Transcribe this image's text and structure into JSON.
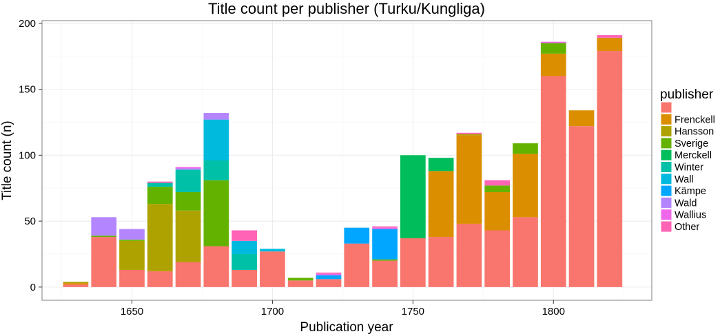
{
  "chart_data": {
    "type": "bar",
    "stacked": true,
    "title": "Title count per publisher (Turku/Kungliga)",
    "xlabel": "Publication year",
    "ylabel": "Title count (n)",
    "xlim": [
      1618,
      1835
    ],
    "ylim": [
      -10,
      202
    ],
    "x_ticks": [
      1650,
      1700,
      1750,
      1800
    ],
    "y_ticks": [
      0,
      50,
      100,
      150,
      200
    ],
    "grid": true,
    "legend": {
      "title": "publisher",
      "position": "right",
      "entries": [
        "",
        "Frenckell",
        "Hansson",
        "Sverige",
        "Merckell",
        "Winter",
        "Wall",
        "Kämpe",
        "Wald",
        "Wallius",
        "Other"
      ]
    },
    "categories": [
      1630,
      1640,
      1650,
      1660,
      1670,
      1680,
      1690,
      1700,
      1710,
      1720,
      1730,
      1740,
      1750,
      1760,
      1770,
      1780,
      1790,
      1800,
      1810,
      1820
    ],
    "series": [
      {
        "key": "unnamed",
        "color": "#F8766D",
        "values": [
          2,
          38,
          13,
          12,
          19,
          31,
          13,
          27,
          5,
          6,
          33,
          20,
          37,
          38,
          48,
          43,
          53,
          160,
          122,
          179
        ]
      },
      {
        "key": "frenckell",
        "color": "#DB8E00",
        "values": [
          1,
          0,
          0,
          0,
          0,
          0,
          0,
          0,
          0,
          0,
          0,
          0,
          0,
          50,
          67,
          29,
          48,
          17,
          12,
          10
        ]
      },
      {
        "key": "hansson",
        "color": "#AEA200",
        "values": [
          1,
          0,
          22,
          51,
          39,
          0,
          0,
          0,
          0,
          0,
          0,
          0,
          0,
          0,
          1,
          0,
          0,
          0,
          0,
          0
        ]
      },
      {
        "key": "sverige",
        "color": "#64B200",
        "values": [
          0,
          1,
          1,
          13,
          14,
          50,
          0,
          0,
          2,
          0,
          0,
          1,
          0,
          0,
          0,
          5,
          8,
          8,
          0,
          0
        ]
      },
      {
        "key": "merckell",
        "color": "#00BD5C",
        "values": [
          0,
          0,
          0,
          0,
          0,
          0,
          0,
          0,
          0,
          0,
          0,
          0,
          63,
          10,
          0,
          0,
          0,
          0,
          0,
          0
        ]
      },
      {
        "key": "winter",
        "color": "#00C1A7",
        "values": [
          0,
          0,
          0,
          3,
          17,
          15,
          12,
          0,
          0,
          0,
          0,
          0,
          0,
          0,
          0,
          0,
          0,
          0,
          0,
          0
        ]
      },
      {
        "key": "wall",
        "color": "#00BADE",
        "values": [
          0,
          0,
          0,
          0,
          0,
          31,
          10,
          2,
          0,
          0,
          0,
          0,
          0,
          0,
          0,
          0,
          0,
          0,
          0,
          0
        ]
      },
      {
        "key": "kampe",
        "color": "#00A6FF",
        "values": [
          0,
          0,
          0,
          0,
          0,
          0,
          0,
          0,
          0,
          3,
          12,
          23,
          0,
          0,
          0,
          0,
          0,
          0,
          0,
          0
        ]
      },
      {
        "key": "wald",
        "color": "#B385FF",
        "values": [
          0,
          14,
          8,
          0,
          1,
          5,
          0,
          0,
          0,
          0,
          0,
          0,
          0,
          0,
          0,
          0,
          0,
          0,
          0,
          0
        ]
      },
      {
        "key": "wallius",
        "color": "#EF67EB",
        "values": [
          0,
          0,
          0,
          0,
          1,
          0,
          0,
          0,
          0,
          1,
          0,
          1,
          0,
          0,
          0,
          0,
          0,
          1,
          0,
          0
        ]
      },
      {
        "key": "other",
        "color": "#FF63B6",
        "values": [
          0,
          0,
          0,
          1,
          0,
          0,
          8,
          0,
          0,
          1,
          0,
          1,
          0,
          0,
          1,
          4,
          0,
          0,
          0,
          2
        ]
      }
    ],
    "bar_width_years": 9,
    "colors": {
      "panel_border": "#7f7f7f",
      "grid_major": "#ebebeb",
      "grid_minor": "#f5f5f5",
      "text": "#000000"
    }
  }
}
